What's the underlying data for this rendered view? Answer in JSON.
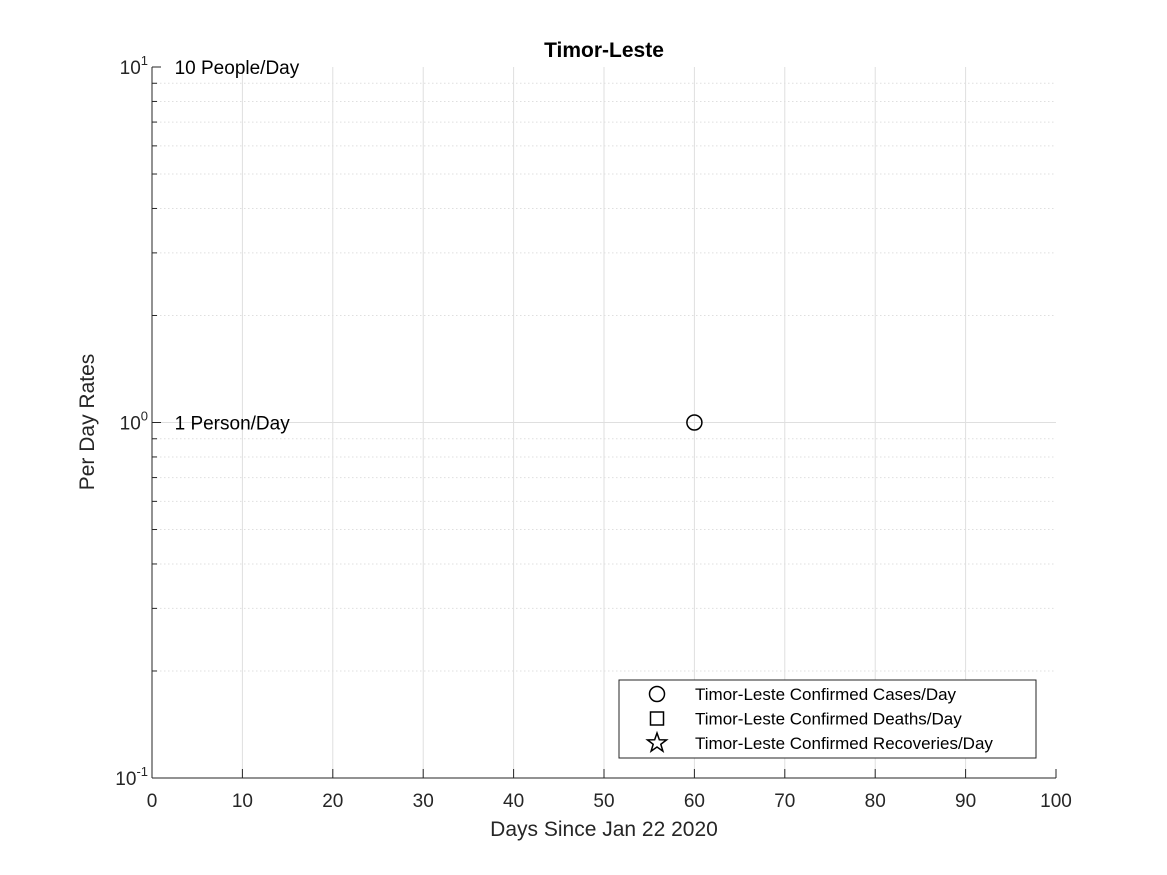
{
  "chart_data": {
    "type": "scatter",
    "title": "Timor-Leste",
    "xlabel": "Days Since Jan 22 2020",
    "ylabel": "Per Day Rates",
    "xlim": [
      0,
      100
    ],
    "ylim": [
      0.1,
      10
    ],
    "yscale": "log",
    "grid": true,
    "minor_grid": true,
    "x_ticks": [
      0,
      10,
      20,
      30,
      40,
      50,
      60,
      70,
      80,
      90,
      100
    ],
    "y_ticks": [
      {
        "value": 0.1,
        "base": "10",
        "exp": "-1"
      },
      {
        "value": 1,
        "base": "10",
        "exp": "0"
      },
      {
        "value": 10,
        "base": "10",
        "exp": "1"
      }
    ],
    "annotations": [
      {
        "text": "10 People/Day",
        "x": 2.5,
        "y": 10
      },
      {
        "text": "1 Person/Day",
        "x": 2.5,
        "y": 1
      }
    ],
    "series": [
      {
        "name": "Timor-Leste Confirmed Cases/Day",
        "marker": "circle",
        "points": [
          {
            "x": 60,
            "y": 1
          }
        ]
      },
      {
        "name": "Timor-Leste Confirmed Deaths/Day",
        "marker": "square",
        "points": []
      },
      {
        "name": "Timor-Leste Confirmed Recoveries/Day",
        "marker": "star",
        "points": []
      }
    ],
    "legend_position": "bottom-right",
    "colors": {
      "marker": "#000000",
      "axis": "#262626",
      "grid": "#dfdfdf"
    }
  }
}
